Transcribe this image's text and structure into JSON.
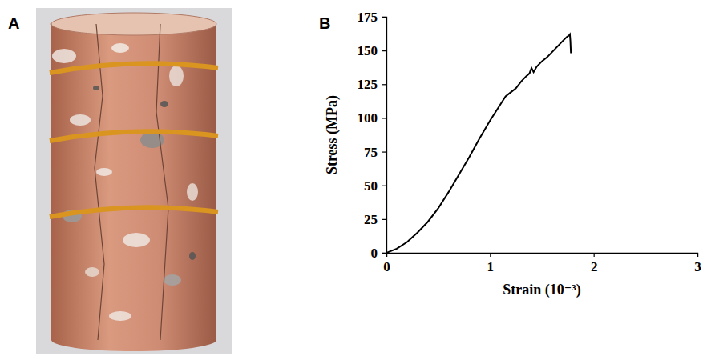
{
  "panel_labels": [
    "A",
    "B"
  ],
  "chart_data": {
    "type": "line",
    "x_label": "Strain (10⁻³)",
    "y_label": "Stress (MPa)",
    "x": [
      0,
      0.1,
      0.2,
      0.3,
      0.4,
      0.5,
      0.6,
      0.7,
      0.8,
      0.9,
      1.0,
      1.1,
      1.15,
      1.2,
      1.25,
      1.3,
      1.35,
      1.38,
      1.4,
      1.42,
      1.45,
      1.5,
      1.55,
      1.6,
      1.65,
      1.7,
      1.74,
      1.76,
      1.77,
      1.775,
      1.78
    ],
    "series": [
      {
        "color": "#000000",
        "line_style": "solid",
        "marker": "none",
        "values": [
          0,
          3,
          8,
          15,
          23,
          33,
          45,
          58,
          71,
          85,
          98,
          110,
          116,
          119,
          122,
          127,
          131,
          133,
          137,
          134,
          138,
          142,
          145,
          149,
          153,
          157,
          160,
          161,
          162,
          157,
          148
        ]
      }
    ],
    "xlim": [
      0,
      3
    ],
    "xticks": [
      0,
      1,
      2,
      3
    ],
    "ylim": [
      0,
      175
    ],
    "yticks": [
      0,
      25,
      50,
      75,
      100,
      125,
      150,
      175
    ],
    "grid": false
  }
}
